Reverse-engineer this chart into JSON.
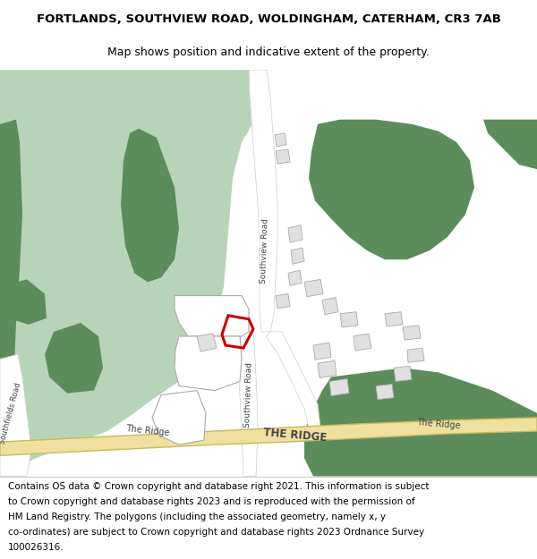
{
  "title_line1": "FORTLANDS, SOUTHVIEW ROAD, WOLDINGHAM, CATERHAM, CR3 7AB",
  "title_line2": "Map shows position and indicative extent of the property.",
  "map_bg": "#f2f2f2",
  "green_dark": "#5c8c5c",
  "green_light": "#b8d4b8",
  "road_color": "#ffffff",
  "road_stroke": "#cccccc",
  "yellow_road": "#f0e0a0",
  "yellow_road_stroke": "#c8b860",
  "building_fill": "#e0e0e0",
  "building_stroke": "#aaaaaa",
  "plot_color": "#cc0000",
  "text_color": "#444444",
  "title_fontsize": 9.5,
  "subtitle_fontsize": 9,
  "footer_fontsize": 7.5,
  "footer_lines": [
    "Contains OS data © Crown copyright and database right 2021. This information is subject",
    "to Crown copyright and database rights 2023 and is reproduced with the permission of",
    "HM Land Registry. The polygons (including the associated geometry, namely x, y",
    "co-ordinates) are subject to Crown copyright and database rights 2023 Ordnance Survey",
    "100026316."
  ]
}
